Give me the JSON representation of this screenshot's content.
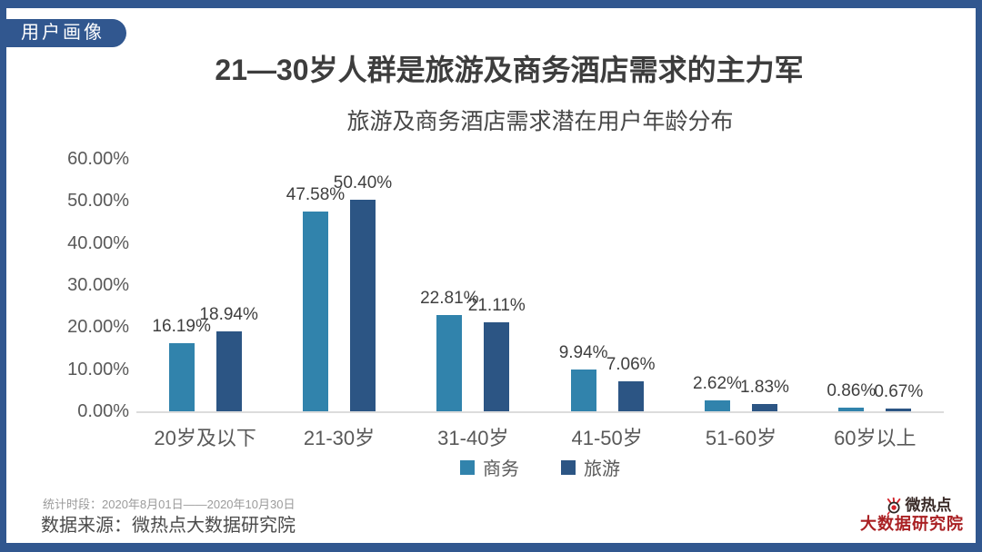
{
  "page": {
    "badge": "用户画像",
    "title": "21—30岁人群是旅游及商务酒店需求的主力军",
    "footer": {
      "period": "统计时段：2020年8月01日——2020年10月30日",
      "source": "数据来源：微热点大数据研究院"
    },
    "logo": {
      "line1": "微热点",
      "line2": "大数据研究院"
    }
  },
  "colors": {
    "frame_blue": "#31578f",
    "series_business": "#3183ac",
    "series_travel": "#2c5584",
    "axis_text": "#595959",
    "data_label_text": "#3f3f3f",
    "baseline_gray": "#dcdcdc",
    "logo_red": "#a92023"
  },
  "chart_data": {
    "type": "bar",
    "title": "旅游及商务酒店需求潜在用户年龄分布",
    "categories": [
      "20岁及以下",
      "21-30岁",
      "31-40岁",
      "41-50岁",
      "51-60岁",
      "60岁以上"
    ],
    "series": [
      {
        "name": "商务",
        "color": "#3183ac",
        "values": [
          16.19,
          47.58,
          22.81,
          9.94,
          2.62,
          0.86
        ]
      },
      {
        "name": "旅游",
        "color": "#2c5584",
        "values": [
          18.94,
          50.4,
          21.11,
          7.06,
          1.83,
          0.67
        ]
      }
    ],
    "xlabel": "",
    "ylabel": "",
    "ylim": [
      0,
      60
    ],
    "yticks": [
      0,
      10,
      20,
      30,
      40,
      50,
      60
    ],
    "ytick_labels": [
      "0.00%",
      "10.00%",
      "20.00%",
      "30.00%",
      "40.00%",
      "50.00%",
      "60.00%"
    ],
    "data_labels": true,
    "grid": false,
    "legend_position": "bottom"
  }
}
